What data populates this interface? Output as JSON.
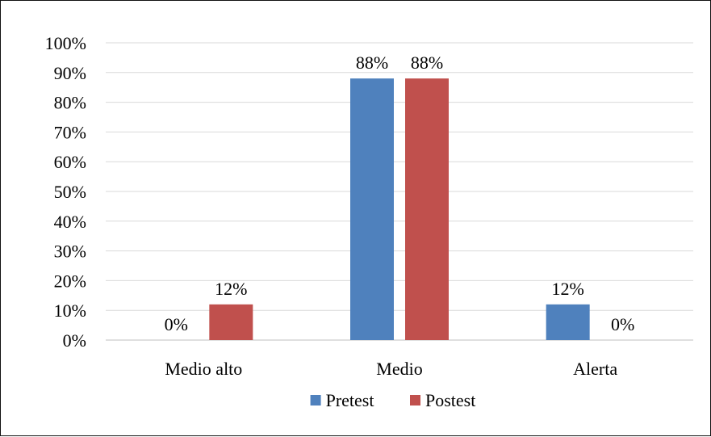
{
  "chart_data": {
    "type": "bar",
    "categories": [
      "Medio alto",
      "Medio",
      "Alerta"
    ],
    "series": [
      {
        "name": "Pretest",
        "values": [
          0,
          88,
          12
        ],
        "labels": [
          "0%",
          "88%",
          "12%"
        ],
        "color": "#4F81BD"
      },
      {
        "name": "Postest",
        "values": [
          12,
          88,
          0
        ],
        "labels": [
          "12%",
          "88%",
          "0%"
        ],
        "color": "#C0504D"
      }
    ],
    "y_ticks": [
      "0%",
      "10%",
      "20%",
      "30%",
      "40%",
      "50%",
      "60%",
      "70%",
      "80%",
      "90%",
      "100%"
    ],
    "ylim": [
      0,
      100
    ],
    "y_unit": "%",
    "grid": true,
    "legend_position": "bottom"
  }
}
